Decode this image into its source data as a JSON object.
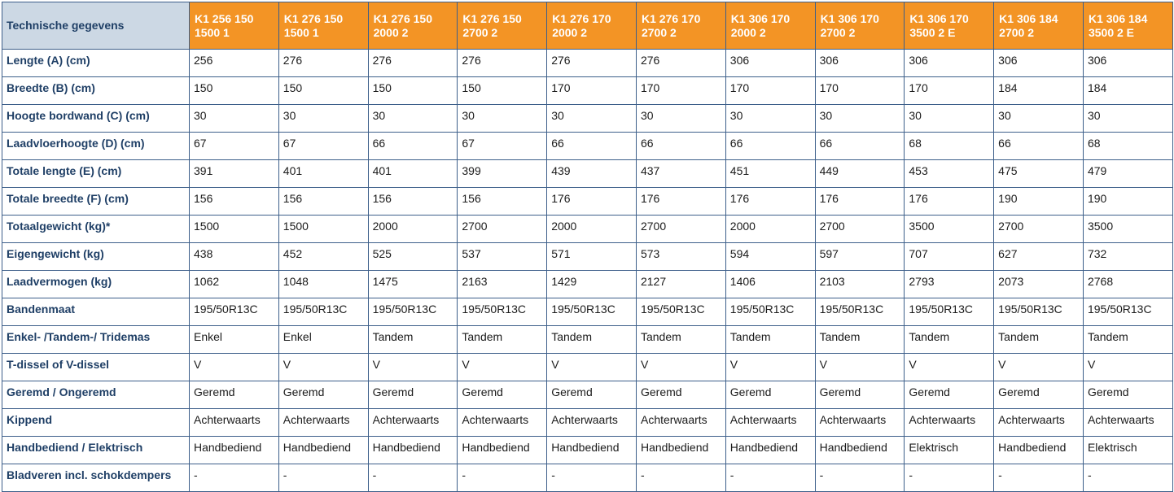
{
  "table": {
    "corner_label": "Technische gegevens",
    "models": [
      [
        "K1 256 150",
        "1500 1"
      ],
      [
        "K1 276 150",
        "1500 1"
      ],
      [
        "K1 276 150",
        "2000 2"
      ],
      [
        "K1 276 150",
        "2700 2"
      ],
      [
        "K1 276 170",
        "2000 2"
      ],
      [
        "K1 276 170",
        "2700 2"
      ],
      [
        "K1 306 170",
        "2000 2"
      ],
      [
        "K1 306 170",
        "2700 2"
      ],
      [
        "K1 306 170",
        "3500 2 E"
      ],
      [
        "K1 306 184",
        "2700 2"
      ],
      [
        "K1 306 184",
        "3500 2 E"
      ]
    ],
    "rows": [
      {
        "label": "Lengte (A) (cm)",
        "values": [
          "256",
          "276",
          "276",
          "276",
          "276",
          "276",
          "306",
          "306",
          "306",
          "306",
          "306"
        ]
      },
      {
        "label": "Breedte (B) (cm)",
        "values": [
          "150",
          "150",
          "150",
          "150",
          "170",
          "170",
          "170",
          "170",
          "170",
          "184",
          "184"
        ]
      },
      {
        "label": "Hoogte bordwand (C) (cm)",
        "values": [
          "30",
          "30",
          "30",
          "30",
          "30",
          "30",
          "30",
          "30",
          "30",
          "30",
          "30"
        ]
      },
      {
        "label": "Laadvloerhoogte (D) (cm)",
        "values": [
          "67",
          "67",
          "66",
          "67",
          "66",
          "66",
          "66",
          "66",
          "68",
          "66",
          "68"
        ]
      },
      {
        "label": "Totale lengte (E) (cm)",
        "values": [
          "391",
          "401",
          "401",
          "399",
          "439",
          "437",
          "451",
          "449",
          "453",
          "475",
          "479"
        ]
      },
      {
        "label": "Totale breedte (F) (cm)",
        "values": [
          "156",
          "156",
          "156",
          "156",
          "176",
          "176",
          "176",
          "176",
          "176",
          "190",
          "190"
        ]
      },
      {
        "label": "Totaalgewicht (kg)*",
        "values": [
          "1500",
          "1500",
          "2000",
          "2700",
          "2000",
          "2700",
          "2000",
          "2700",
          "3500",
          "2700",
          "3500"
        ]
      },
      {
        "label": "Eigengewicht (kg)",
        "values": [
          "438",
          "452",
          "525",
          "537",
          "571",
          "573",
          "594",
          "597",
          "707",
          "627",
          "732"
        ]
      },
      {
        "label": "Laadvermogen (kg)",
        "values": [
          "1062",
          "1048",
          "1475",
          "2163",
          "1429",
          "2127",
          "1406",
          "2103",
          "2793",
          "2073",
          "2768"
        ]
      },
      {
        "label": "Bandenmaat",
        "values": [
          "195/50R13C",
          "195/50R13C",
          "195/50R13C",
          "195/50R13C",
          "195/50R13C",
          "195/50R13C",
          "195/50R13C",
          "195/50R13C",
          "195/50R13C",
          "195/50R13C",
          "195/50R13C"
        ]
      },
      {
        "label": "Enkel- /Tandem-/ Tridemas",
        "values": [
          "Enkel",
          "Enkel",
          "Tandem",
          "Tandem",
          "Tandem",
          "Tandem",
          "Tandem",
          "Tandem",
          "Tandem",
          "Tandem",
          "Tandem"
        ]
      },
      {
        "label": "T-dissel of V-dissel",
        "values": [
          "V",
          "V",
          "V",
          "V",
          "V",
          "V",
          "V",
          "V",
          "V",
          "V",
          "V"
        ]
      },
      {
        "label": "Geremd / Ongeremd",
        "values": [
          "Geremd",
          "Geremd",
          "Geremd",
          "Geremd",
          "Geremd",
          "Geremd",
          "Geremd",
          "Geremd",
          "Geremd",
          "Geremd",
          "Geremd"
        ]
      },
      {
        "label": "Kippend",
        "values": [
          "Achterwaarts",
          "Achterwaarts",
          "Achterwaarts",
          "Achterwaarts",
          "Achterwaarts",
          "Achterwaarts",
          "Achterwaarts",
          "Achterwaarts",
          "Achterwaarts",
          "Achterwaarts",
          "Achterwaarts"
        ]
      },
      {
        "label": "Handbediend / Elektrisch",
        "values": [
          "Handbediend",
          "Handbediend",
          "Handbediend",
          "Handbediend",
          "Handbediend",
          "Handbediend",
          "Handbediend",
          "Handbediend",
          "Elektrisch",
          "Handbediend",
          "Elektrisch"
        ]
      },
      {
        "label": "Bladveren incl. schokdempers",
        "values": [
          "-",
          "-",
          "-",
          "-",
          "-",
          "-",
          "-",
          "-",
          "-",
          "-",
          "-"
        ]
      }
    ]
  }
}
